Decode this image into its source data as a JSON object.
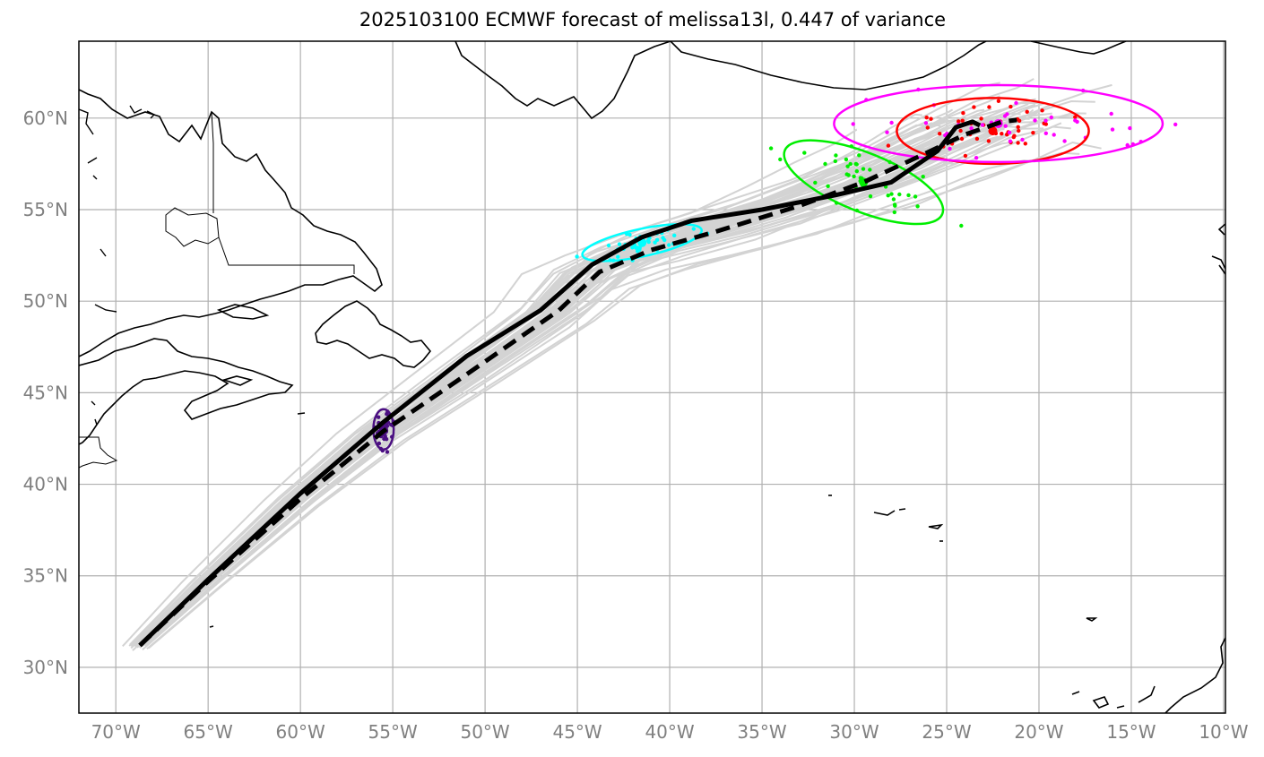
{
  "title": "2025103100 ECMWF forecast of melissa13l, 0.447 of variance",
  "map": {
    "lon_range": [
      -72,
      -9.9
    ],
    "lat_range": [
      27.5,
      64.2
    ],
    "lon_ticks": [
      -70,
      -65,
      -60,
      -55,
      -50,
      -45,
      -40,
      -35,
      -30,
      -25,
      -20,
      -15,
      -10
    ],
    "lat_ticks": [
      30,
      35,
      40,
      45,
      50,
      55,
      60
    ],
    "lon_labels": [
      "70°W",
      "65°W",
      "60°W",
      "55°W",
      "50°W",
      "45°W",
      "40°W",
      "35°W",
      "30°W",
      "25°W",
      "20°W",
      "15°W",
      "10°W"
    ],
    "lat_labels": [
      "30°N",
      "35°N",
      "40°N",
      "45°N",
      "50°N",
      "55°N",
      "60°N"
    ]
  },
  "colors": {
    "ensemble": "#d3d3d3",
    "grid": "#b0b0b0",
    "ticklabel": "#808080",
    "track": "#000000",
    "t1": "#4b0f82",
    "t2": "#00ffff",
    "t3": "#00ee00",
    "t4": "#ff0000",
    "t5": "#ff00ff"
  },
  "tracks": {
    "deterministic": [
      [
        -68.7,
        31.2
      ],
      [
        -65,
        34.8
      ],
      [
        -60,
        39.5
      ],
      [
        -55.5,
        43.4
      ],
      [
        -51,
        47
      ],
      [
        -47,
        49.5
      ],
      [
        -44.2,
        52
      ],
      [
        -41.5,
        53.5
      ],
      [
        -38.8,
        54.4
      ],
      [
        -35,
        55
      ],
      [
        -31,
        55.8
      ],
      [
        -28,
        56.5
      ],
      [
        -25.5,
        58.2
      ],
      [
        -24.5,
        59.5
      ],
      [
        -23.6,
        59.8
      ],
      [
        -23.2,
        59.6
      ]
    ],
    "ensemble_mean": [
      [
        -68.7,
        31.2
      ],
      [
        -65,
        34.7
      ],
      [
        -60,
        39.2
      ],
      [
        -55.5,
        42.9
      ],
      [
        -51,
        46
      ],
      [
        -46,
        49.5
      ],
      [
        -43.8,
        51.6
      ],
      [
        -41,
        52.8
      ],
      [
        -37.5,
        53.8
      ],
      [
        -33,
        55.2
      ],
      [
        -29.5,
        56.5
      ],
      [
        -26.5,
        57.9
      ],
      [
        -24,
        59.1
      ],
      [
        -22,
        59.8
      ],
      [
        -21.2,
        59.9
      ]
    ]
  },
  "ellipses": [
    {
      "color_key": "t1",
      "lon": -55.5,
      "lat": 43.0,
      "rx_deg": 0.55,
      "ry_deg": 1.1,
      "angle": 0,
      "filled": true
    },
    {
      "color_key": "t2",
      "lon": -41.5,
      "lat": 53.2,
      "rx_deg": 3.3,
      "ry_deg": 0.75,
      "angle": 12
    },
    {
      "color_key": "t3",
      "lon": -29.5,
      "lat": 56.5,
      "rx_deg": 4.6,
      "ry_deg": 1.6,
      "angle": -22
    },
    {
      "color_key": "t4",
      "lon": -22.5,
      "lat": 59.3,
      "rx_deg": 5.2,
      "ry_deg": 1.8,
      "angle": 0
    },
    {
      "color_key": "t5",
      "lon": -22.2,
      "lat": 59.7,
      "rx_deg": 8.9,
      "ry_deg": 2.1,
      "angle": 0
    }
  ],
  "member_counts": {
    "t1": 50,
    "t2": 40,
    "t3": 45,
    "t4": 45,
    "t5": 40
  }
}
